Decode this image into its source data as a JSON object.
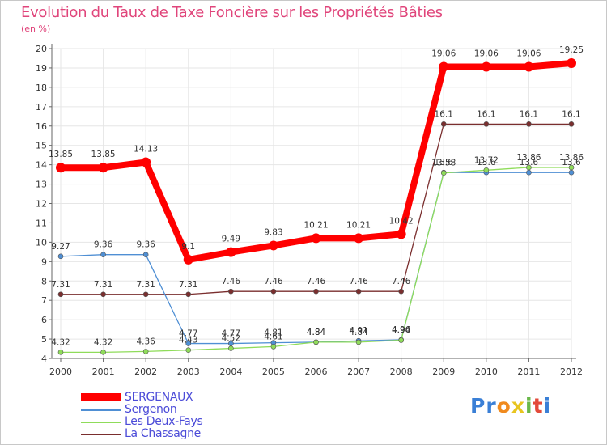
{
  "title": "Evolution du Taux de Taxe Foncière sur les Propriétés Bâties",
  "subtitle": "(en %)",
  "logo": {
    "text": "Proxiti",
    "letters": [
      "P",
      "r",
      "o",
      "x",
      "i",
      "t",
      "i"
    ],
    "colors": [
      "#3a7fd6",
      "#3a7fd6",
      "#f08a1e",
      "#e8c520",
      "#6ab84a",
      "#e34a3a",
      "#3a7fd6"
    ]
  },
  "chart_data": {
    "type": "line",
    "title": "Evolution du Taux de Taxe Foncière sur les Propriétés Bâties",
    "ylabel": "(en %)",
    "xlabel": "",
    "x": [
      "2000",
      "2001",
      "2002",
      "2003",
      "2004",
      "2005",
      "2006",
      "2007",
      "2008",
      "2009",
      "2010",
      "2011",
      "2012"
    ],
    "ylim": [
      4,
      20
    ],
    "yticks": [
      "4",
      "5",
      "6",
      "7",
      "8",
      "9",
      "10",
      "11",
      "12",
      "13",
      "14",
      "15",
      "16",
      "17",
      "18",
      "19",
      "20"
    ],
    "series": [
      {
        "name": "SERGENAUX",
        "color": "#ff0000",
        "values": [
          13.85,
          13.85,
          14.13,
          9.1,
          9.49,
          9.83,
          10.21,
          10.21,
          10.42,
          19.06,
          19.06,
          19.06,
          19.25
        ],
        "labels": [
          "13.85",
          "13.85",
          "14.13",
          "9.1",
          "9.49",
          "9.83",
          "10.21",
          "10.21",
          "10.42",
          "19.06",
          "19.06",
          "19.06",
          "19.25"
        ]
      },
      {
        "name": "Sergenon",
        "color": "#4f8fd4",
        "values": [
          9.27,
          9.36,
          9.36,
          4.77,
          4.77,
          4.81,
          4.84,
          4.91,
          4.96,
          13.6,
          13.6,
          13.6,
          13.6
        ],
        "labels": [
          "9.27",
          "9.36",
          "9.36",
          "4.77",
          "4.77",
          "4.81",
          "4.84",
          "4.91",
          "4.96",
          "13.6",
          "13.6",
          "13.6",
          "13.6"
        ]
      },
      {
        "name": "Les Deux-Fays",
        "color": "#8fdc5a",
        "values": [
          4.32,
          4.32,
          4.36,
          4.43,
          4.52,
          4.61,
          4.84,
          4.84,
          4.94,
          13.58,
          13.72,
          13.86,
          13.86
        ],
        "labels": [
          "4.32",
          "4.32",
          "4.36",
          "4.43",
          "4.52",
          "4.61",
          "4.84",
          "4.84",
          "4.94",
          "13.58",
          "13.72",
          "13.86",
          "13.86"
        ]
      },
      {
        "name": "La Chassagne",
        "color": "#7a2e2e",
        "values": [
          7.31,
          7.31,
          7.31,
          7.31,
          7.46,
          7.46,
          7.46,
          7.46,
          7.46,
          16.1,
          16.1,
          16.1,
          16.1
        ],
        "labels": [
          "7.31",
          "7.31",
          "7.31",
          "7.31",
          "7.46",
          "7.46",
          "7.46",
          "7.46",
          "7.46",
          "16.1",
          "16.1",
          "16.1",
          "16.1"
        ]
      }
    ]
  }
}
